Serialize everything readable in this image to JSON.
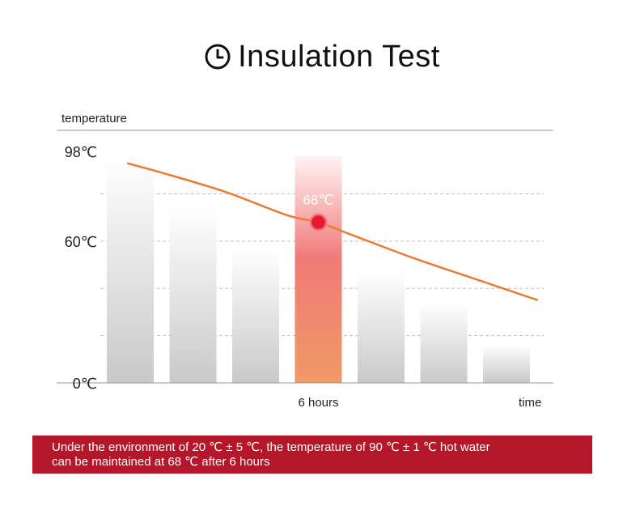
{
  "header": {
    "title": "Insulation Test",
    "icon": "clock-icon"
  },
  "chart_data": {
    "type": "bar",
    "ylabel": "temperature",
    "xlabel": "time",
    "x_tick_labels": [
      "",
      "",
      "",
      "6 hours",
      "",
      "",
      ""
    ],
    "y_tick_labels": [
      "98℃",
      "60℃",
      "0℃"
    ],
    "y_tick_values": [
      98,
      60,
      0
    ],
    "ylim": [
      0,
      98
    ],
    "categories": [
      "",
      "",
      "",
      "6 hours",
      "",
      "",
      ""
    ],
    "values": [
      96,
      75,
      57,
      96,
      47,
      34,
      16
    ],
    "highlight_index": 3,
    "curve": {
      "x": [
        -0.05,
        0.5,
        1.5,
        2.5,
        3.0,
        3.5,
        4.5,
        5.5,
        6.5
      ],
      "y": [
        93,
        89,
        81,
        71,
        68,
        63,
        53,
        44,
        35
      ]
    },
    "annotation": {
      "text": "68℃",
      "x": 3.0,
      "y": 68
    },
    "grid": true,
    "colors": {
      "bar_top": "#ffffff",
      "bar_bottom": "#c9c9c9",
      "highlight_top": "#fff3f4",
      "highlight_mid": "#f07a78",
      "highlight_bottom": "#ef9a64",
      "line": "#eb7a33",
      "dot": "#e8192c",
      "grid": "#bdbdbd",
      "axis": "#999999",
      "annotation_text": "#ffffff"
    }
  },
  "caption": {
    "line1": "Under the environment of 20 ℃ ± 5 ℃, the temperature of 90 ℃ ± 1 ℃ hot water",
    "line2": "can be maintained at 68 ℃ after 6 hours",
    "background": "#b5172a"
  }
}
